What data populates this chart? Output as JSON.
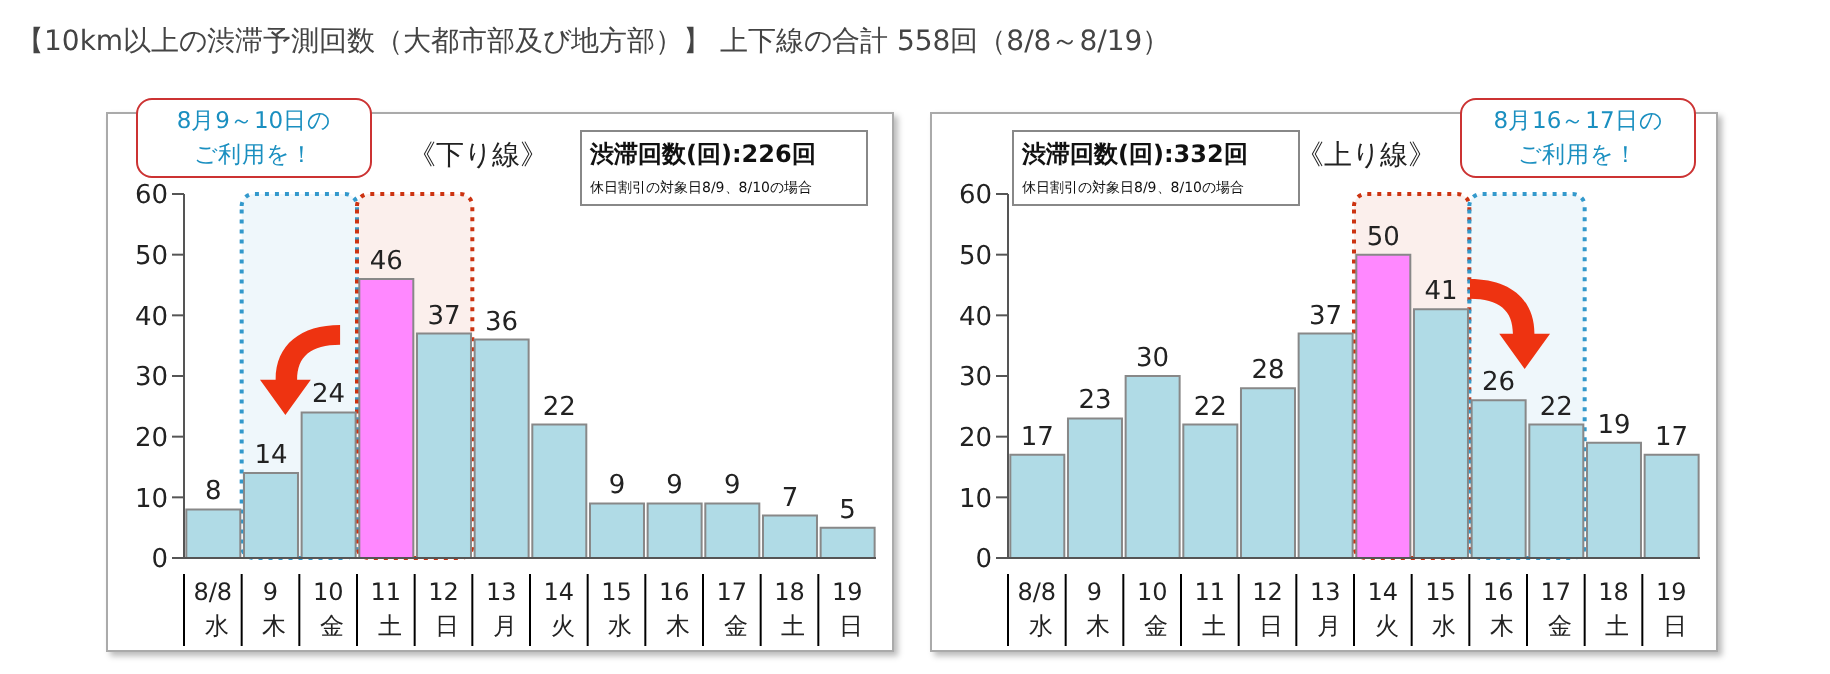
{
  "chart_data": [
    {
      "type": "bar",
      "title": "【10km以上の渋滞予測回数（大都市部及び地方部）】 上下線の合計 558回（8/8～8/19）",
      "subtitle": "《下り線》",
      "categories": [
        "8/8\n水",
        "9\n木",
        "10\n金",
        "11\n土",
        "12\n日",
        "13\n月",
        "14\n火",
        "15\n水",
        "16\n木",
        "17\n金",
        "18\n土",
        "19\n日"
      ],
      "values": [
        8,
        14,
        24,
        46,
        37,
        36,
        22,
        9,
        9,
        9,
        7,
        5
      ],
      "colors": [
        "#b0dbe6",
        "#b0dbe6",
        "#b0dbe6",
        "#ff88ff",
        "#b0dbe6",
        "#b0dbe6",
        "#b0dbe6",
        "#b0dbe6",
        "#b0dbe6",
        "#b0dbe6",
        "#b0dbe6",
        "#b0dbe6"
      ],
      "ylim": [
        0,
        60
      ],
      "yticks": [
        0,
        10,
        20,
        30,
        40,
        50,
        60
      ],
      "grid": false,
      "legend": false,
      "data_labels": true,
      "bands": [
        {
          "axis": "x",
          "from": "9\n木",
          "to": "10\n金",
          "color": "#3399cc"
        },
        {
          "axis": "x",
          "from": "11\n土",
          "to": "12\n日",
          "color": "#cc3311"
        }
      ],
      "annotations": [
        "渋滞回数(回):226回",
        "休日割引の対象日8/9、8/10の場合",
        "8月9～10日のご利用を！"
      ]
    },
    {
      "type": "bar",
      "subtitle": "《上り線》",
      "categories": [
        "8/8\n水",
        "9\n木",
        "10\n金",
        "11\n土",
        "12\n日",
        "13\n月",
        "14\n火",
        "15\n水",
        "16\n木",
        "17\n金",
        "18\n土",
        "19\n日"
      ],
      "values": [
        17,
        23,
        30,
        22,
        28,
        37,
        50,
        41,
        26,
        22,
        19,
        17
      ],
      "colors": [
        "#b0dbe6",
        "#b0dbe6",
        "#b0dbe6",
        "#b0dbe6",
        "#b0dbe6",
        "#b0dbe6",
        "#ff88ff",
        "#b0dbe6",
        "#b0dbe6",
        "#b0dbe6",
        "#b0dbe6",
        "#b0dbe6"
      ],
      "ylim": [
        0,
        60
      ],
      "yticks": [
        0,
        10,
        20,
        30,
        40,
        50,
        60
      ],
      "grid": false,
      "legend": false,
      "data_labels": true,
      "bands": [
        {
          "axis": "x",
          "from": "14\n火",
          "to": "15\n水",
          "color": "#cc3311"
        },
        {
          "axis": "x",
          "from": "16\n木",
          "to": "17\n金",
          "color": "#3399cc"
        }
      ],
      "annotations": [
        "渋滞回数(回):332回",
        "休日割引の対象日8/9、8/10の場合",
        "8月16～17日のご利用を！"
      ]
    }
  ]
}
